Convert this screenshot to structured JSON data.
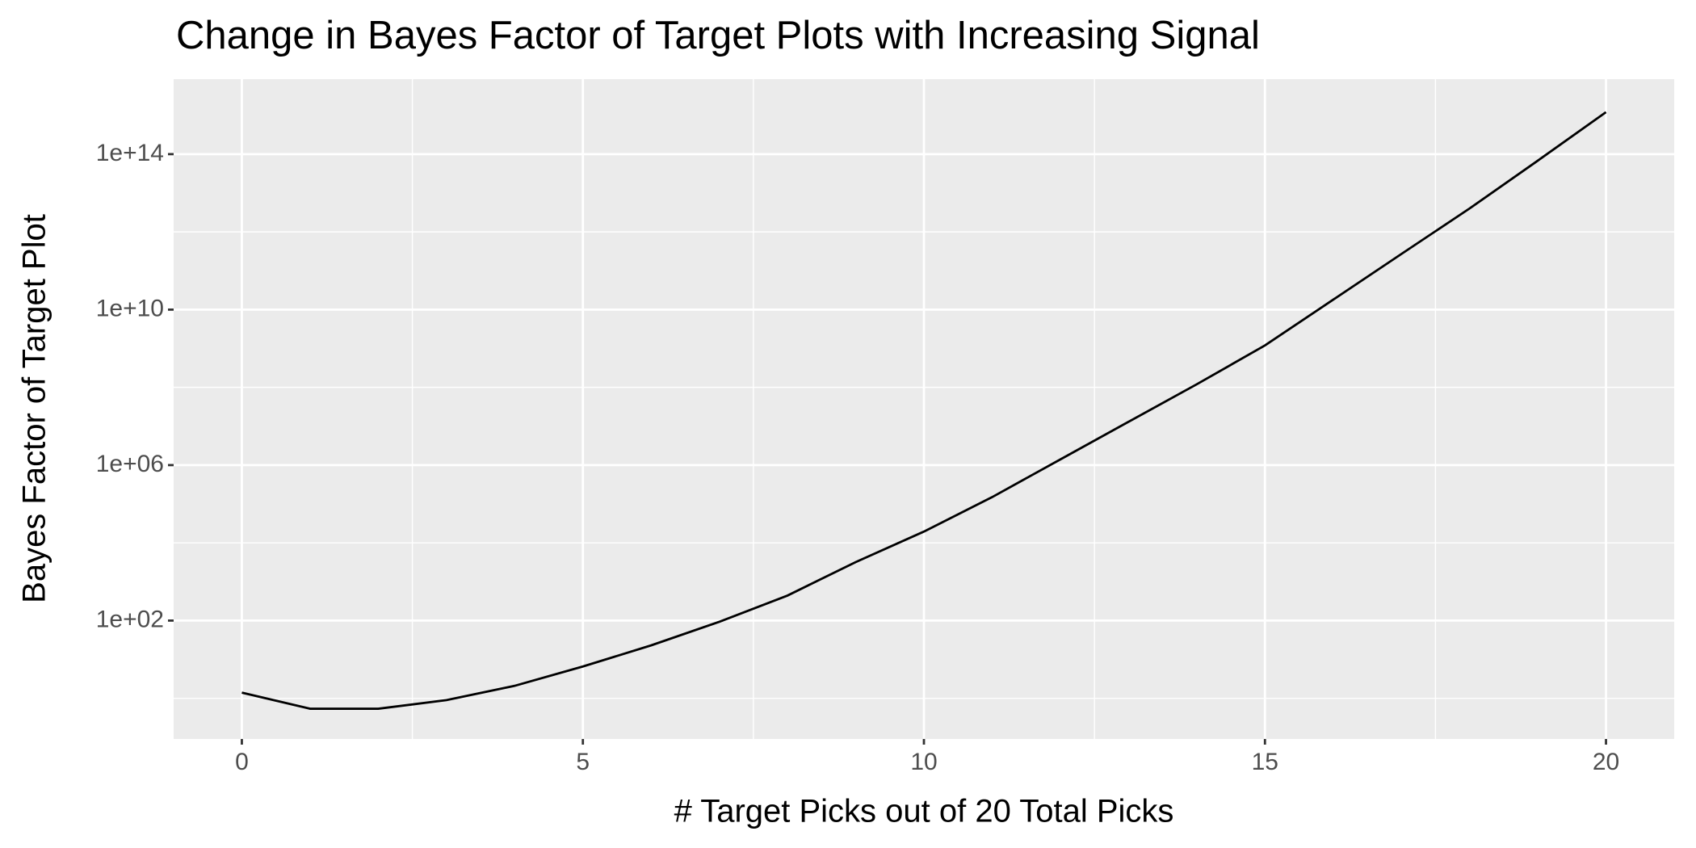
{
  "chart_data": {
    "type": "line",
    "title": "Change in Bayes Factor of Target Plots with Increasing Signal",
    "x_label": "# Target Picks out of 20 Total Picks",
    "y_label": "Bayes Factor of Target Plot",
    "x": [
      0,
      1,
      2,
      3,
      4,
      5,
      6,
      7,
      8,
      9,
      10,
      11,
      12,
      13,
      14,
      15,
      16,
      17,
      18,
      19,
      20
    ],
    "series": [
      {
        "color": "#000000",
        "values": [
          1.4,
          0.54,
          0.54,
          0.9,
          2.1,
          6.6,
          23,
          93,
          440,
          3200,
          19500,
          150000,
          1400000,
          13000000,
          120000000,
          1200000000,
          18000000000,
          270000000000,
          4000000000000,
          68000000000000,
          1200000000000000
        ]
      }
    ],
    "log_y": true,
    "xlim": [
      -1,
      21
    ],
    "ylim": [
      0.09,
      8500000000000000.0
    ],
    "xticks": [
      0,
      5,
      10,
      15,
      20
    ],
    "x_minor_ticks": [
      2.5,
      7.5,
      12.5,
      17.5
    ],
    "yticks": [
      {
        "value": 100,
        "label": "1e+02"
      },
      {
        "value": 1000000,
        "label": "1e+06"
      },
      {
        "value": 10000000000,
        "label": "1e+10"
      },
      {
        "value": 100000000000000,
        "label": "1e+14"
      }
    ],
    "y_minor_ticks": [
      1,
      10000,
      100000000,
      1000000000000
    ],
    "grid": true,
    "panel_color": "#ebebeb"
  }
}
